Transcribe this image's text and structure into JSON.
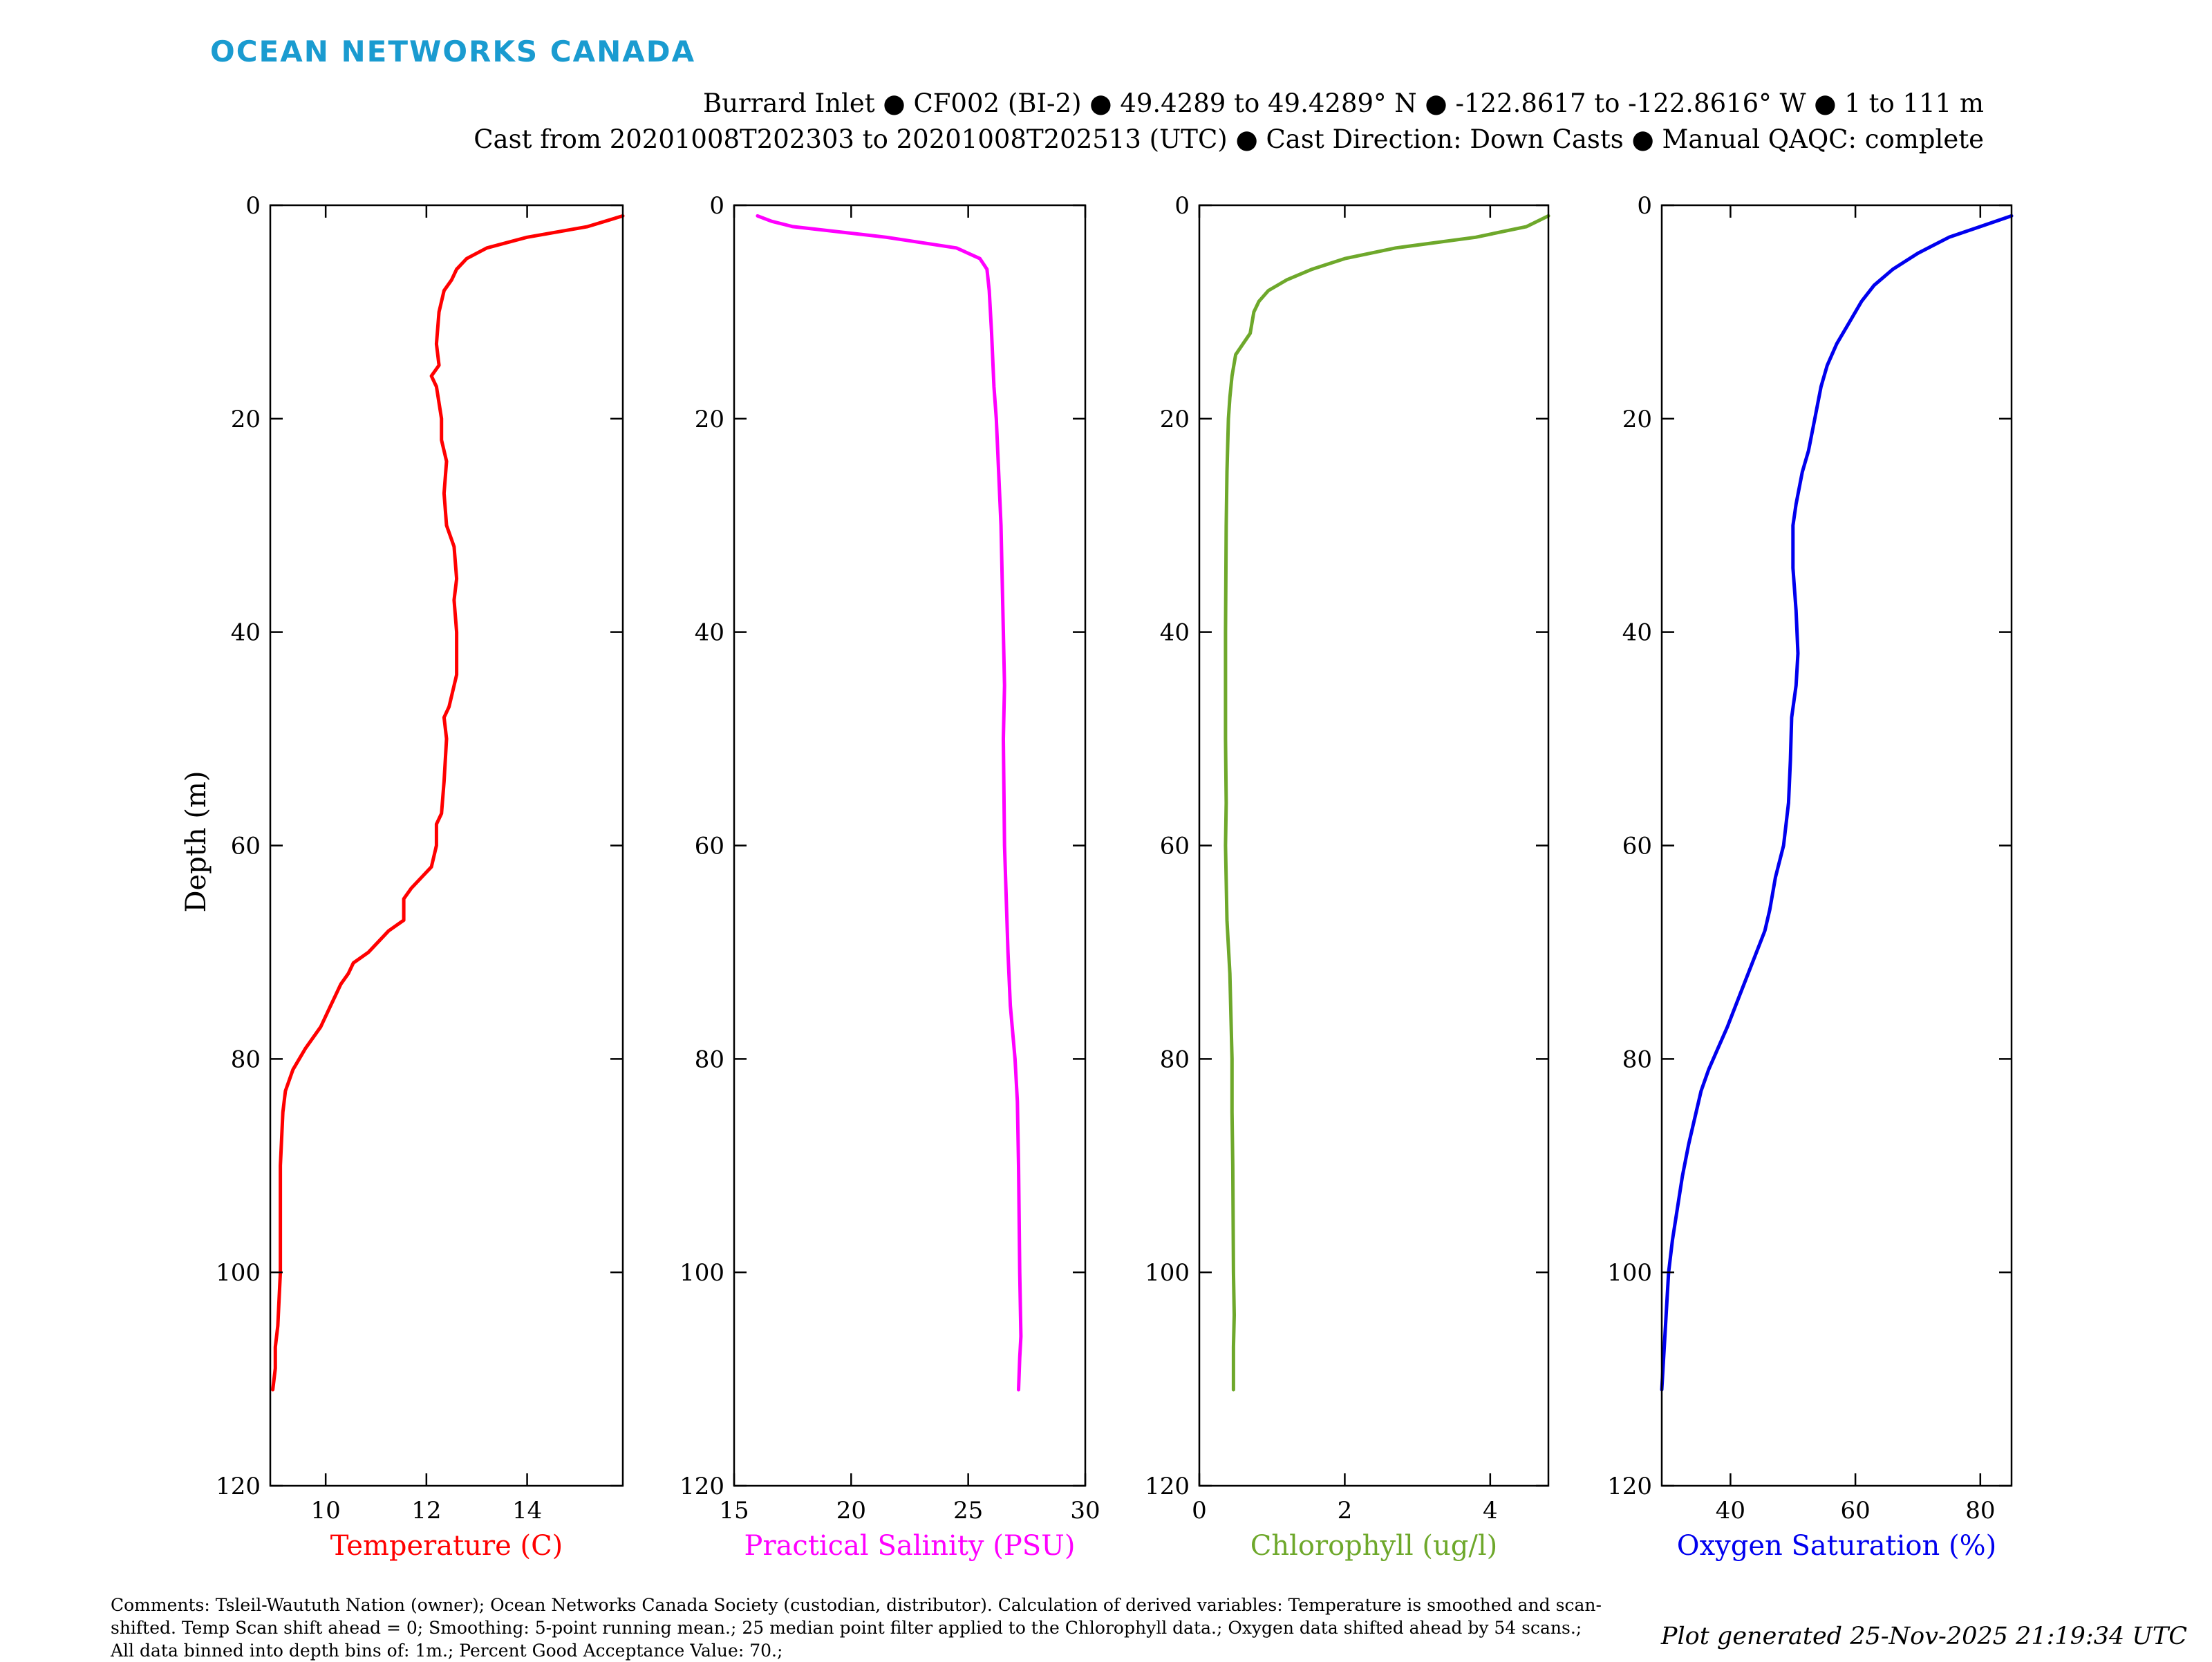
{
  "header": {
    "brand": "OCEAN NETWORKS CANADA",
    "line1": "Burrard Inlet ● CF002 (BI-2) ● 49.4289 to 49.4289° N ● -122.8617 to -122.8616° W ● 1 to 111 m",
    "line2": "Cast from 20201008T202303 to 20201008T202513 (UTC) ● Cast Direction: Down Casts ● Manual QAQC: complete"
  },
  "footer": {
    "comments": "Comments: Tsleil-Waututh Nation (owner); Ocean Networks Canada Society (custodian, distributor). Calculation of derived variables: Temperature is smoothed and scan-shifted. Temp Scan shift ahead = 0; Smoothing: 5-point running mean.; 25 median point filter applied to the Chlorophyll data.; Oxygen data shifted ahead by 54 scans.; All data binned into depth bins of: 1m.; Percent Good Acceptance Value: 70.;",
    "generated": "Plot generated 25-Nov-2025 21:19:34 UTC"
  },
  "chart_data": [
    {
      "type": "line",
      "xlabel": "Temperature (C)",
      "ylabel": "Depth (m)",
      "color": "#ff0000",
      "xlim": [
        8.9,
        15.9
      ],
      "ylim": [
        0,
        120
      ],
      "y_reversed": true,
      "xticks": [
        10,
        12,
        14
      ],
      "yticks": [
        0,
        20,
        40,
        60,
        80,
        100,
        120
      ],
      "series": [
        {
          "points": [
            [
              15.9,
              1
            ],
            [
              15.2,
              2
            ],
            [
              14.0,
              3
            ],
            [
              13.2,
              4
            ],
            [
              12.8,
              5
            ],
            [
              12.6,
              6
            ],
            [
              12.5,
              7
            ],
            [
              12.35,
              8
            ],
            [
              12.25,
              10
            ],
            [
              12.2,
              13
            ],
            [
              12.25,
              15
            ],
            [
              12.1,
              16
            ],
            [
              12.2,
              17
            ],
            [
              12.3,
              20
            ],
            [
              12.3,
              22
            ],
            [
              12.4,
              24
            ],
            [
              12.35,
              27
            ],
            [
              12.4,
              30
            ],
            [
              12.55,
              32
            ],
            [
              12.6,
              35
            ],
            [
              12.55,
              37
            ],
            [
              12.6,
              40
            ],
            [
              12.6,
              44
            ],
            [
              12.45,
              47
            ],
            [
              12.35,
              48
            ],
            [
              12.4,
              50
            ],
            [
              12.35,
              54
            ],
            [
              12.3,
              57
            ],
            [
              12.2,
              58
            ],
            [
              12.2,
              60
            ],
            [
              12.1,
              62
            ],
            [
              11.9,
              63
            ],
            [
              11.7,
              64
            ],
            [
              11.55,
              65
            ],
            [
              11.55,
              67
            ],
            [
              11.25,
              68
            ],
            [
              11.05,
              69
            ],
            [
              10.85,
              70
            ],
            [
              10.55,
              71
            ],
            [
              10.45,
              72
            ],
            [
              10.3,
              73
            ],
            [
              10.2,
              74
            ],
            [
              10.1,
              75
            ],
            [
              9.9,
              77
            ],
            [
              9.6,
              79
            ],
            [
              9.35,
              81
            ],
            [
              9.2,
              83
            ],
            [
              9.15,
              85
            ],
            [
              9.1,
              90
            ],
            [
              9.1,
              95
            ],
            [
              9.1,
              100
            ],
            [
              9.05,
              105
            ],
            [
              9.0,
              107
            ],
            [
              9.0,
              109
            ],
            [
              8.95,
              111
            ]
          ]
        }
      ]
    },
    {
      "type": "line",
      "xlabel": "Practical Salinity (PSU)",
      "ylabel": "",
      "color": "#ff00ff",
      "xlim": [
        15,
        30
      ],
      "ylim": [
        0,
        120
      ],
      "y_reversed": true,
      "xticks": [
        15,
        20,
        25,
        30
      ],
      "yticks": [
        0,
        20,
        40,
        60,
        80,
        100,
        120
      ],
      "series": [
        {
          "points": [
            [
              16.0,
              1
            ],
            [
              16.6,
              1.5
            ],
            [
              17.5,
              2
            ],
            [
              21.5,
              3
            ],
            [
              24.5,
              4
            ],
            [
              25.5,
              5
            ],
            [
              25.8,
              6
            ],
            [
              25.9,
              8
            ],
            [
              26.0,
              12
            ],
            [
              26.1,
              17
            ],
            [
              26.2,
              20
            ],
            [
              26.3,
              25
            ],
            [
              26.4,
              30
            ],
            [
              26.45,
              35
            ],
            [
              26.5,
              40
            ],
            [
              26.55,
              45
            ],
            [
              26.5,
              50
            ],
            [
              26.55,
              60
            ],
            [
              26.7,
              70
            ],
            [
              26.8,
              75
            ],
            [
              27.0,
              80
            ],
            [
              27.1,
              84
            ],
            [
              27.15,
              90
            ],
            [
              27.2,
              100
            ],
            [
              27.25,
              106
            ],
            [
              27.2,
              108
            ],
            [
              27.15,
              111
            ]
          ]
        }
      ]
    },
    {
      "type": "line",
      "xlabel": "Chlorophyll (ug/l)",
      "ylabel": "",
      "color": "#6ea82b",
      "xlim": [
        0,
        4.8
      ],
      "ylim": [
        0,
        120
      ],
      "y_reversed": true,
      "xticks": [
        0,
        2,
        4
      ],
      "yticks": [
        0,
        20,
        40,
        60,
        80,
        100,
        120
      ],
      "series": [
        {
          "points": [
            [
              4.8,
              1
            ],
            [
              4.5,
              2
            ],
            [
              3.8,
              3
            ],
            [
              2.7,
              4
            ],
            [
              2.0,
              5
            ],
            [
              1.55,
              6
            ],
            [
              1.2,
              7
            ],
            [
              0.95,
              8
            ],
            [
              0.82,
              9
            ],
            [
              0.75,
              10
            ],
            [
              0.7,
              12
            ],
            [
              0.6,
              13
            ],
            [
              0.5,
              14
            ],
            [
              0.45,
              16
            ],
            [
              0.42,
              18
            ],
            [
              0.4,
              20
            ],
            [
              0.38,
              25
            ],
            [
              0.37,
              30
            ],
            [
              0.36,
              40
            ],
            [
              0.36,
              50
            ],
            [
              0.37,
              56
            ],
            [
              0.36,
              60
            ],
            [
              0.38,
              67
            ],
            [
              0.42,
              72
            ],
            [
              0.45,
              80
            ],
            [
              0.45,
              85
            ],
            [
              0.46,
              90
            ],
            [
              0.47,
              100
            ],
            [
              0.48,
              104
            ],
            [
              0.47,
              107
            ],
            [
              0.47,
              111
            ]
          ]
        }
      ]
    },
    {
      "type": "line",
      "xlabel": "Oxygen Saturation (%)",
      "ylabel": "",
      "color": "#0000ee",
      "xlim": [
        29,
        85
      ],
      "ylim": [
        0,
        120
      ],
      "y_reversed": true,
      "xticks": [
        40,
        60,
        80
      ],
      "yticks": [
        0,
        20,
        40,
        60,
        80,
        100,
        120
      ],
      "series": [
        {
          "points": [
            [
              85,
              1
            ],
            [
              80,
              2
            ],
            [
              75,
              3
            ],
            [
              70,
              4.5
            ],
            [
              66,
              6
            ],
            [
              63,
              7.5
            ],
            [
              61,
              9
            ],
            [
              59,
              11
            ],
            [
              57,
              13
            ],
            [
              55.5,
              15
            ],
            [
              54.5,
              17
            ],
            [
              53.5,
              20
            ],
            [
              52.5,
              23
            ],
            [
              51.5,
              25
            ],
            [
              50.5,
              28
            ],
            [
              50.0,
              30
            ],
            [
              50.0,
              34
            ],
            [
              50.5,
              38
            ],
            [
              50.8,
              42
            ],
            [
              50.5,
              45
            ],
            [
              49.8,
              48
            ],
            [
              49.6,
              52
            ],
            [
              49.3,
              56
            ],
            [
              48.5,
              60
            ],
            [
              47.2,
              63
            ],
            [
              46.3,
              66
            ],
            [
              45.5,
              68
            ],
            [
              43.5,
              71
            ],
            [
              41.5,
              74
            ],
            [
              39.5,
              77
            ],
            [
              38.0,
              79
            ],
            [
              36.5,
              81
            ],
            [
              35.3,
              83
            ],
            [
              34.5,
              85
            ],
            [
              33.3,
              88
            ],
            [
              32.3,
              91
            ],
            [
              31.5,
              94
            ],
            [
              30.7,
              97
            ],
            [
              30.1,
              100
            ],
            [
              29.7,
              104
            ],
            [
              29.4,
              107
            ],
            [
              29.2,
              109
            ],
            [
              29.0,
              111
            ]
          ]
        }
      ]
    }
  ]
}
